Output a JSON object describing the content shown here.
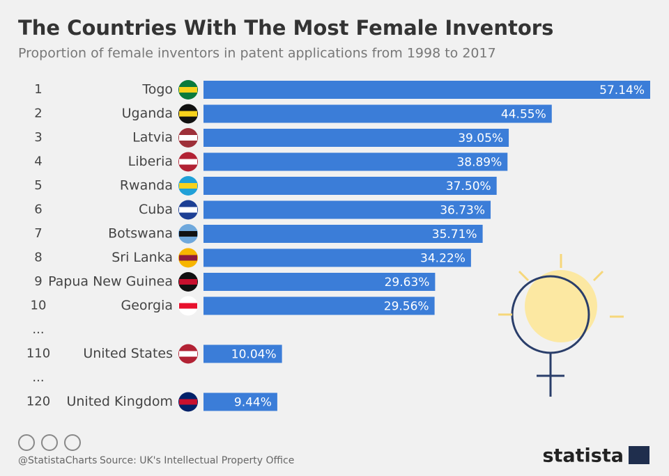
{
  "chart_data": {
    "type": "bar",
    "orientation": "horizontal",
    "title": "The Countries With The Most Female Inventors",
    "subtitle": "Proportion of female inventors in patent applications from 1998 to 2017",
    "ranks": [
      1,
      2,
      3,
      4,
      5,
      6,
      7,
      8,
      9,
      10,
      "...",
      110,
      "...",
      120
    ],
    "categories": [
      "Togo",
      "Uganda",
      "Latvia",
      "Liberia",
      "Rwanda",
      "Cuba",
      "Botswana",
      "Sri Lanka",
      "Papua New Guinea",
      "Georgia",
      null,
      "United States",
      null,
      "United Kingdom"
    ],
    "values": [
      57.14,
      44.55,
      39.05,
      38.89,
      37.5,
      36.73,
      35.71,
      34.22,
      29.63,
      29.56,
      null,
      10.04,
      null,
      9.44
    ],
    "value_labels": [
      "57.14%",
      "44.55%",
      "39.05%",
      "38.89%",
      "37.50%",
      "36.73%",
      "35.71%",
      "34.22%",
      "29.63%",
      "29.56%",
      null,
      "10.04%",
      null,
      "9.44%"
    ],
    "color": "#3b7dd8"
  },
  "footer": {
    "handle": "@StatistaCharts",
    "source": "Source: UK's Intellectual Property Office",
    "brand": "statista"
  }
}
